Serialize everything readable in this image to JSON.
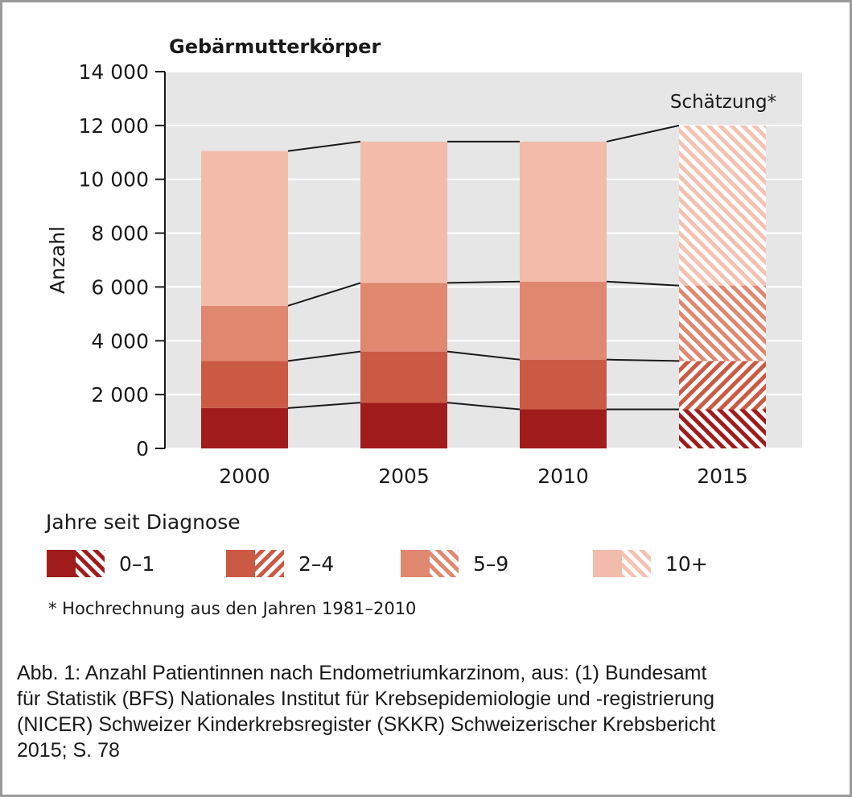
{
  "chart_data": {
    "type": "bar",
    "stacked": true,
    "title": "Gebärmutterkörper",
    "ylabel": "Anzahl",
    "xlabel": "",
    "ylim": [
      0,
      14000
    ],
    "yticks": [
      0,
      2000,
      4000,
      6000,
      8000,
      10000,
      12000,
      14000
    ],
    "ytick_labels": [
      "0",
      "2 000",
      "4 000",
      "6 000",
      "8 000",
      "10 000",
      "12 000",
      "14 000"
    ],
    "categories": [
      "2000",
      "2005",
      "2010",
      "2015"
    ],
    "estimated_categories": [
      "2015"
    ],
    "annotation": "Schätzung*",
    "grid": true,
    "legend_title": "Jahre seit Diagnose",
    "legend_position": "bottom",
    "series": [
      {
        "name": "0–1",
        "values": [
          1500,
          1700,
          1450,
          1450
        ],
        "color": "#a01c1c"
      },
      {
        "name": "2–4",
        "values": [
          1750,
          1900,
          1850,
          1800
        ],
        "color": "#cb5a45"
      },
      {
        "name": "5–9",
        "values": [
          2050,
          2550,
          2900,
          2800
        ],
        "color": "#e0876f"
      },
      {
        "name": "10+",
        "values": [
          5750,
          5250,
          5200,
          5950
        ],
        "color": "#f2bcab"
      }
    ],
    "footnote": "* Hochrechnung aus den Jahren 1981–2010"
  },
  "caption_lines": [
    "Abb. 1: Anzahl Patientinnen nach Endometriumkarzinom, aus: (1) Bundesamt",
    "für Statistik (BFS) Nationales Institut für Krebsepidemiologie und -registrierung",
    "(NICER) Schweizer Kinderkrebsregister (SKKR) Schweizerischer Krebsbericht",
    "2015; S. 78"
  ]
}
